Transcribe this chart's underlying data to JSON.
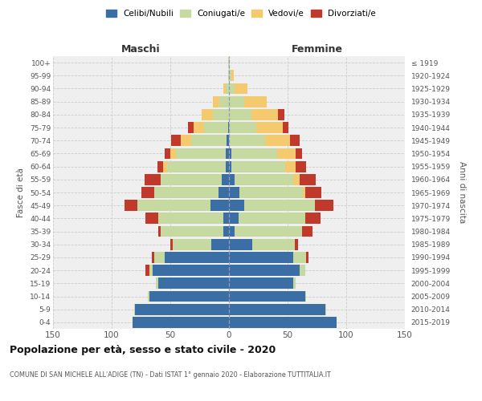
{
  "age_groups": [
    "0-4",
    "5-9",
    "10-14",
    "15-19",
    "20-24",
    "25-29",
    "30-34",
    "35-39",
    "40-44",
    "45-49",
    "50-54",
    "55-59",
    "60-64",
    "65-69",
    "70-74",
    "75-79",
    "80-84",
    "85-89",
    "90-94",
    "95-99",
    "100+"
  ],
  "birth_years": [
    "2015-2019",
    "2010-2014",
    "2005-2009",
    "2000-2004",
    "1995-1999",
    "1990-1994",
    "1985-1989",
    "1980-1984",
    "1975-1979",
    "1970-1974",
    "1965-1969",
    "1960-1964",
    "1955-1959",
    "1950-1954",
    "1945-1949",
    "1940-1944",
    "1935-1939",
    "1930-1934",
    "1925-1929",
    "1920-1924",
    "≤ 1919"
  ],
  "colors": {
    "celibi_nubili": "#3a6ea5",
    "coniugati": "#c5d9a0",
    "vedovi": "#f5c96e",
    "divorziati": "#c0392b"
  },
  "male_celibi": [
    82,
    80,
    68,
    60,
    65,
    55,
    15,
    5,
    5,
    16,
    9,
    6,
    3,
    3,
    2,
    1,
    0,
    0,
    0,
    0,
    0
  ],
  "male_coniugati": [
    0,
    1,
    1,
    2,
    3,
    9,
    33,
    53,
    55,
    62,
    55,
    52,
    50,
    42,
    30,
    20,
    14,
    8,
    3,
    1,
    1
  ],
  "male_vedovi": [
    0,
    0,
    0,
    0,
    0,
    0,
    0,
    0,
    0,
    0,
    0,
    0,
    3,
    5,
    9,
    9,
    9,
    6,
    2,
    0,
    0
  ],
  "male_divorziati": [
    0,
    0,
    0,
    0,
    3,
    2,
    2,
    2,
    11,
    11,
    11,
    14,
    5,
    5,
    8,
    5,
    0,
    0,
    0,
    0,
    0
  ],
  "female_nubili": [
    92,
    82,
    65,
    55,
    60,
    55,
    20,
    5,
    8,
    13,
    9,
    5,
    2,
    2,
    0,
    0,
    0,
    0,
    0,
    0,
    0
  ],
  "female_coniugate": [
    0,
    1,
    1,
    2,
    5,
    11,
    36,
    57,
    57,
    60,
    54,
    50,
    46,
    39,
    31,
    23,
    19,
    13,
    5,
    2,
    1
  ],
  "female_vedove": [
    0,
    0,
    0,
    0,
    0,
    0,
    0,
    0,
    0,
    0,
    2,
    5,
    9,
    16,
    21,
    23,
    23,
    19,
    11,
    2,
    0
  ],
  "female_divorziate": [
    0,
    0,
    0,
    0,
    0,
    2,
    3,
    9,
    13,
    16,
    14,
    14,
    9,
    5,
    8,
    5,
    5,
    0,
    0,
    0,
    0
  ],
  "xlim": 150,
  "xticks": [
    -150,
    -100,
    -50,
    0,
    50,
    100,
    150
  ],
  "title": "Popolazione per età, sesso e stato civile - 2020",
  "subtitle": "COMUNE DI SAN MICHELE ALL'ADIGE (TN) - Dati ISTAT 1° gennaio 2020 - Elaborazione TUTTITALIA.IT",
  "ylabel_left": "Fasce di età",
  "ylabel_right": "Anni di nascita",
  "label_maschi": "Maschi",
  "label_femmine": "Femmine",
  "legend_labels": [
    "Celibi/Nubili",
    "Coniugati/e",
    "Vedovi/e",
    "Divorziati/e"
  ],
  "background_color": "#ffffff",
  "plot_bg_color": "#efefef",
  "grid_color": "#cccccc"
}
